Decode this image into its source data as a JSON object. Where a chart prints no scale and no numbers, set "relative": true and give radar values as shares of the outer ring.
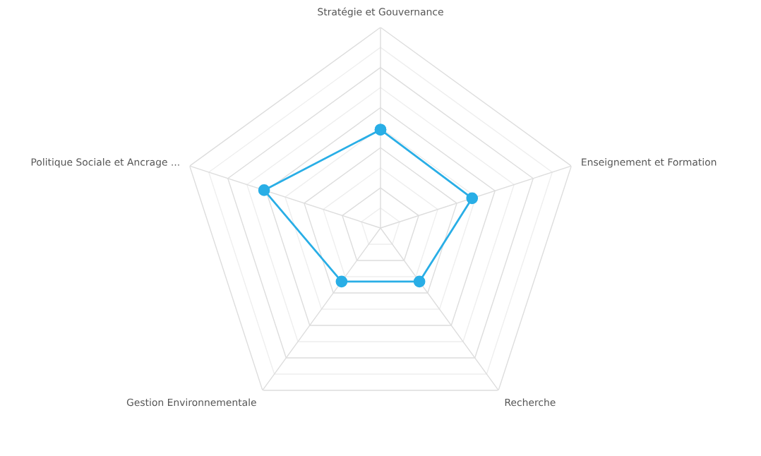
{
  "chart_data": {
    "type": "radar",
    "categories": [
      "Stratégie et Gouvernance",
      "Enseignement et Formation",
      "Recherche",
      "Gestion Environnementale",
      "Politique Sociale et Ancrage ..."
    ],
    "relative": true,
    "grid": true,
    "marker": "circle",
    "line_style": "solid",
    "series": [
      {
        "color": "#29aee6",
        "values": [
          0.49,
          0.48,
          0.33,
          0.33,
          0.61
        ]
      }
    ]
  }
}
